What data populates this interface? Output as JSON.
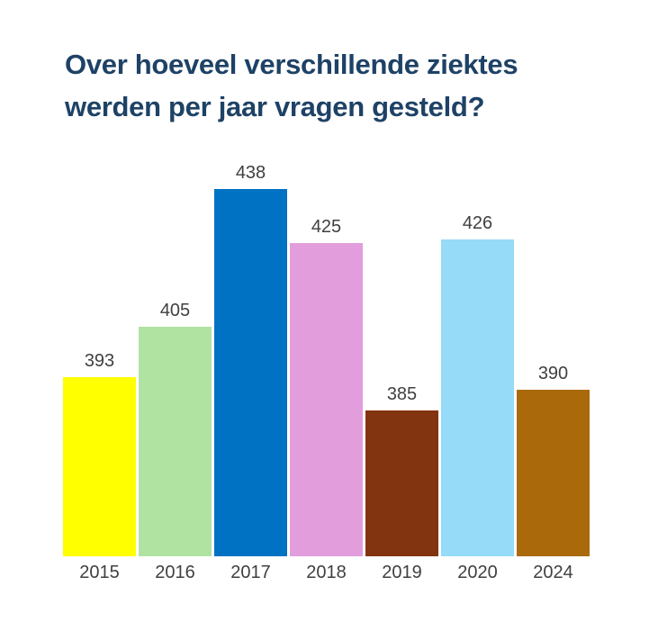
{
  "title": {
    "lines": [
      "Over hoeveel verschillende ziektes",
      "werden per jaar vragen gesteld?"
    ],
    "color": "#1E4266"
  },
  "chart_data": {
    "type": "bar",
    "title": "Over hoeveel verschillende ziektes werden per jaar vragen gesteld?",
    "categories": [
      "2015",
      "2016",
      "2017",
      "2018",
      "2019",
      "2020",
      "2024"
    ],
    "values": [
      393,
      405,
      438,
      425,
      385,
      426,
      390
    ],
    "bar_colors": [
      "#FFFF00",
      "#B0E3A2",
      "#0072C4",
      "#E29EDC",
      "#82330F",
      "#96DBF8",
      "#AA690B"
    ],
    "xlabel": "",
    "ylabel": "",
    "ylim": [
      350,
      445
    ],
    "grid": false,
    "legend": false,
    "data_labels": true,
    "axis_label_color": "#404040",
    "background": "#FFFFFF"
  }
}
